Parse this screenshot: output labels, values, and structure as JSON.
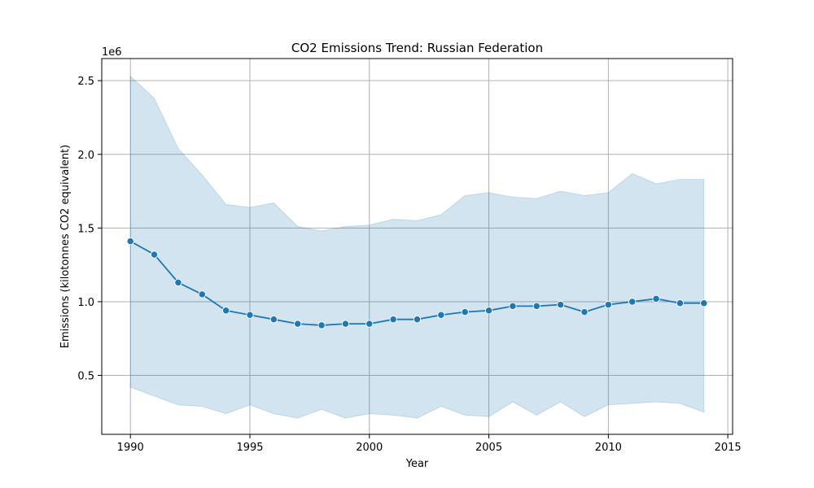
{
  "chart_data": {
    "type": "line",
    "title": "CO2 Emissions Trend: Russian Federation",
    "xlabel": "Year",
    "ylabel": "Emissions (kilotonnes CO2 equivalent)",
    "y_offset_label": "1e6",
    "xlim": [
      1988.8,
      2015.2
    ],
    "ylim": [
      0.1,
      2.65
    ],
    "x_ticks": [
      1990,
      1995,
      2000,
      2005,
      2010,
      2015
    ],
    "y_ticks": [
      0.5,
      1.0,
      1.5,
      2.0,
      2.5
    ],
    "grid": true,
    "color": "#1f77b4",
    "band_color": "#1f77b4",
    "x": [
      1990,
      1991,
      1992,
      1993,
      1994,
      1995,
      1996,
      1997,
      1998,
      1999,
      2000,
      2001,
      2002,
      2003,
      2004,
      2005,
      2006,
      2007,
      2008,
      2009,
      2010,
      2011,
      2012,
      2013,
      2014
    ],
    "series": [
      {
        "values": [
          1.41,
          1.32,
          1.13,
          1.05,
          0.94,
          0.91,
          0.88,
          0.85,
          0.84,
          0.85,
          0.85,
          0.88,
          0.88,
          0.91,
          0.93,
          0.94,
          0.97,
          0.97,
          0.98,
          0.93,
          0.98,
          1.0,
          1.02,
          0.99,
          0.99
        ],
        "upper": [
          2.53,
          2.38,
          2.04,
          1.86,
          1.66,
          1.64,
          1.67,
          1.51,
          1.48,
          1.51,
          1.52,
          1.56,
          1.55,
          1.59,
          1.72,
          1.74,
          1.71,
          1.7,
          1.75,
          1.72,
          1.74,
          1.87,
          1.8,
          1.83,
          1.83
        ],
        "lower": [
          0.42,
          0.36,
          0.3,
          0.29,
          0.24,
          0.3,
          0.24,
          0.21,
          0.27,
          0.21,
          0.24,
          0.23,
          0.21,
          0.29,
          0.23,
          0.22,
          0.32,
          0.23,
          0.32,
          0.22,
          0.3,
          0.31,
          0.32,
          0.31,
          0.25
        ]
      }
    ]
  }
}
